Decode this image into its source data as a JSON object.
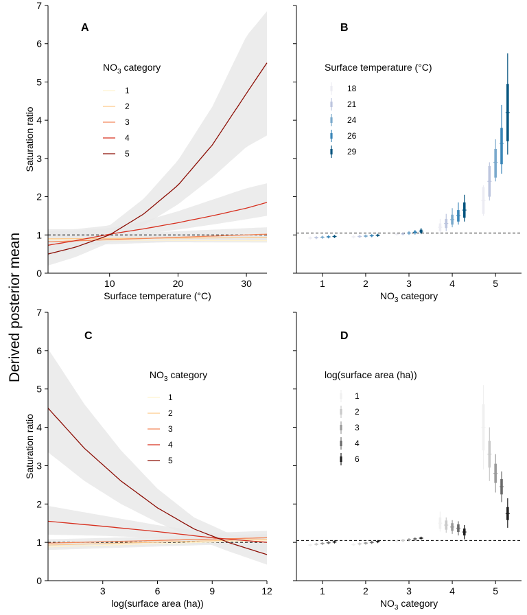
{
  "figure": {
    "shared_ylabel": "Derived posterior mean",
    "panel_ylabel": "Saturation ratio",
    "no3_xlabel_main": "NO",
    "no3_xlabel_sub": "3",
    "no3_xlabel_tail": " category"
  },
  "colors": {
    "no3": [
      "#fff3cf",
      "#fdc98b",
      "#f4885a",
      "#d7301f",
      "#8c0d04"
    ],
    "temp": [
      "#ececf3",
      "#bcc5de",
      "#7aa9cc",
      "#3a86b8",
      "#05547e"
    ],
    "area": [
      "#f0f0f0",
      "#c9c9c9",
      "#9a9a9a",
      "#6a6a6a",
      "#1e1e1e"
    ],
    "band": "#e9e9e9",
    "reference_line": "#000000"
  },
  "chart_data": [
    {
      "panel": "A",
      "type": "line",
      "xlabel": "Surface temperature (°C)",
      "ylabel": "Saturation ratio",
      "xlim": [
        1,
        33
      ],
      "ylim": [
        0,
        7
      ],
      "xticks": [
        10,
        20,
        30
      ],
      "yticks": [
        0,
        1,
        2,
        3,
        4,
        5,
        6,
        7
      ],
      "reference_y": 1,
      "legend": {
        "title_main": "NO",
        "title_sub": "3",
        "title_tail": " category",
        "placement": "upper-left",
        "labels": [
          "1",
          "2",
          "3",
          "4",
          "5"
        ]
      },
      "series": [
        {
          "name": "1",
          "x": [
            1,
            33
          ],
          "y": [
            0.87,
            0.85
          ],
          "lower": [
            0.82,
            0.8
          ],
          "upper": [
            0.92,
            0.9
          ]
        },
        {
          "name": "2",
          "x": [
            1,
            33
          ],
          "y": [
            0.9,
            0.93
          ],
          "lower": [
            0.84,
            0.86
          ],
          "upper": [
            0.96,
            1.0
          ]
        },
        {
          "name": "3",
          "x": [
            1,
            33
          ],
          "y": [
            0.82,
            1.02
          ],
          "lower": [
            0.7,
            0.9
          ],
          "upper": [
            0.95,
            1.2
          ]
        },
        {
          "name": "4",
          "x": [
            1,
            5,
            10,
            15,
            20,
            25,
            30,
            33
          ],
          "y": [
            0.73,
            0.85,
            1.02,
            1.16,
            1.32,
            1.5,
            1.7,
            1.85
          ],
          "lower": [
            0.45,
            0.62,
            0.88,
            1.02,
            1.14,
            1.27,
            1.41,
            1.5
          ],
          "upper": [
            1.1,
            1.12,
            1.18,
            1.36,
            1.62,
            1.92,
            2.22,
            2.35
          ]
        },
        {
          "name": "5",
          "x": [
            1,
            5,
            10,
            15,
            20,
            25,
            30,
            33
          ],
          "y": [
            0.5,
            0.68,
            1.0,
            1.55,
            2.3,
            3.35,
            4.7,
            5.5
          ],
          "lower": [
            0.2,
            0.42,
            0.8,
            1.25,
            1.8,
            2.5,
            3.3,
            3.6
          ],
          "upper": [
            1.15,
            1.15,
            1.25,
            1.95,
            2.95,
            4.35,
            6.2,
            6.85
          ]
        }
      ]
    },
    {
      "panel": "B",
      "type": "scatter",
      "xlabel": "NO3 category",
      "xlim": [
        0.4,
        5.6
      ],
      "ylim": [
        0,
        7
      ],
      "xticks": [
        1,
        2,
        3,
        4,
        5
      ],
      "reference_y": 1.05,
      "legend": {
        "title": "Surface temperature (°C)",
        "placement": "upper-left",
        "labels": [
          "18",
          "21",
          "24",
          "26",
          "29"
        ]
      },
      "categories": [
        1,
        2,
        3,
        4,
        5
      ],
      "series": [
        {
          "name": "18",
          "mean": [
            0.92,
            0.95,
            1.02,
            1.2,
            1.9
          ],
          "inner_low": [
            0.9,
            0.93,
            1.0,
            1.1,
            1.55
          ],
          "inner_high": [
            0.94,
            0.97,
            1.04,
            1.3,
            2.25
          ],
          "outer_low": [
            0.88,
            0.91,
            0.98,
            1.02,
            1.5
          ],
          "outer_high": [
            0.96,
            0.99,
            1.06,
            1.42,
            2.3
          ]
        },
        {
          "name": "21",
          "mean": [
            0.93,
            0.96,
            1.03,
            1.3,
            2.4
          ],
          "inner_low": [
            0.91,
            0.94,
            1.01,
            1.18,
            2.0
          ],
          "inner_high": [
            0.95,
            0.98,
            1.05,
            1.42,
            2.8
          ],
          "outer_low": [
            0.89,
            0.92,
            0.99,
            1.1,
            1.9
          ],
          "outer_high": [
            0.97,
            1.0,
            1.07,
            1.55,
            2.9
          ]
        },
        {
          "name": "24",
          "mean": [
            0.94,
            0.97,
            1.05,
            1.4,
            2.9
          ],
          "inner_low": [
            0.92,
            0.95,
            1.02,
            1.27,
            2.5
          ],
          "inner_high": [
            0.96,
            0.99,
            1.08,
            1.53,
            3.25
          ],
          "outer_low": [
            0.9,
            0.93,
            1.0,
            1.2,
            2.4
          ],
          "outer_high": [
            0.98,
            1.01,
            1.1,
            1.7,
            3.5
          ]
        },
        {
          "name": "26",
          "mean": [
            0.95,
            0.98,
            1.07,
            1.5,
            3.4
          ],
          "inner_low": [
            0.93,
            0.96,
            1.04,
            1.35,
            2.85
          ],
          "inner_high": [
            0.97,
            1.0,
            1.1,
            1.65,
            3.8
          ],
          "outer_low": [
            0.91,
            0.94,
            1.01,
            1.27,
            2.6
          ],
          "outer_high": [
            0.99,
            1.02,
            1.13,
            1.85,
            4.4
          ]
        },
        {
          "name": "29",
          "mean": [
            0.96,
            0.99,
            1.1,
            1.65,
            4.2
          ],
          "inner_low": [
            0.94,
            0.97,
            1.06,
            1.45,
            3.45
          ],
          "inner_high": [
            0.98,
            1.01,
            1.14,
            1.85,
            4.95
          ],
          "outer_low": [
            0.92,
            0.95,
            1.02,
            1.35,
            3.1
          ],
          "outer_high": [
            1.0,
            1.03,
            1.18,
            2.05,
            5.75
          ]
        }
      ]
    },
    {
      "panel": "C",
      "type": "line",
      "xlabel": "log(surface area (ha))",
      "ylabel": "Saturation ratio",
      "xlim": [
        0,
        12
      ],
      "ylim": [
        0,
        7
      ],
      "xticks": [
        3,
        6,
        9,
        12
      ],
      "yticks": [
        0,
        1,
        2,
        3,
        4,
        5,
        6,
        7
      ],
      "reference_y": 1,
      "legend": {
        "title_main": "NO",
        "title_sub": "3",
        "title_tail": " category",
        "placement": "upper-center",
        "labels": [
          "1",
          "2",
          "3",
          "4",
          "5"
        ]
      },
      "series": [
        {
          "name": "1",
          "x": [
            0,
            12
          ],
          "y": [
            0.88,
            1.05
          ],
          "lower": [
            0.8,
            0.98
          ],
          "upper": [
            0.96,
            1.12
          ]
        },
        {
          "name": "2",
          "x": [
            0,
            12
          ],
          "y": [
            0.93,
            1.08
          ],
          "lower": [
            0.85,
            1.0
          ],
          "upper": [
            1.01,
            1.16
          ]
        },
        {
          "name": "3",
          "x": [
            0,
            12
          ],
          "y": [
            0.98,
            1.12
          ],
          "lower": [
            0.88,
            1.02
          ],
          "upper": [
            1.08,
            1.22
          ]
        },
        {
          "name": "4",
          "x": [
            0,
            3,
            6,
            9,
            12
          ],
          "y": [
            1.55,
            1.42,
            1.28,
            1.12,
            1.0
          ],
          "lower": [
            1.2,
            1.17,
            1.12,
            1.0,
            0.75
          ],
          "upper": [
            1.95,
            1.7,
            1.45,
            1.25,
            1.3
          ]
        },
        {
          "name": "5",
          "x": [
            0,
            2,
            4,
            6,
            8,
            10,
            12
          ],
          "y": [
            4.5,
            3.45,
            2.6,
            1.9,
            1.35,
            0.98,
            0.68
          ],
          "lower": [
            3.35,
            2.6,
            2.0,
            1.52,
            1.1,
            0.75,
            0.42
          ],
          "upper": [
            6.05,
            4.6,
            3.4,
            2.4,
            1.65,
            1.22,
            1.05
          ]
        }
      ]
    },
    {
      "panel": "D",
      "type": "scatter",
      "xlabel": "NO3 category",
      "xlim": [
        0.4,
        5.6
      ],
      "ylim": [
        0,
        7
      ],
      "xticks": [
        1,
        2,
        3,
        4,
        5
      ],
      "reference_y": 1.05,
      "legend": {
        "title": "log(surface area (ha))",
        "placement": "upper-left",
        "labels": [
          "1",
          "2",
          "3",
          "4",
          "6"
        ]
      },
      "categories": [
        1,
        2,
        3,
        4,
        5
      ],
      "series": [
        {
          "name": "1",
          "mean": [
            0.93,
            0.94,
            1.03,
            1.5,
            4.0
          ],
          "inner_low": [
            0.91,
            0.92,
            1.01,
            1.35,
            3.4
          ],
          "inner_high": [
            0.95,
            0.96,
            1.05,
            1.65,
            4.6
          ],
          "outer_low": [
            0.89,
            0.9,
            0.99,
            1.28,
            2.9
          ],
          "outer_high": [
            0.97,
            0.98,
            1.07,
            1.8,
            5.1
          ]
        },
        {
          "name": "2",
          "mean": [
            0.95,
            0.96,
            1.05,
            1.45,
            3.3
          ],
          "inner_low": [
            0.93,
            0.94,
            1.03,
            1.33,
            2.95
          ],
          "inner_high": [
            0.97,
            0.98,
            1.07,
            1.57,
            3.65
          ],
          "outer_low": [
            0.91,
            0.92,
            1.01,
            1.25,
            2.6
          ],
          "outer_high": [
            0.99,
            1.0,
            1.09,
            1.65,
            4.0
          ]
        },
        {
          "name": "3",
          "mean": [
            0.97,
            0.98,
            1.07,
            1.4,
            2.8
          ],
          "inner_low": [
            0.95,
            0.96,
            1.05,
            1.3,
            2.55
          ],
          "inner_high": [
            0.99,
            1.0,
            1.09,
            1.5,
            3.05
          ],
          "outer_low": [
            0.93,
            0.94,
            1.03,
            1.22,
            2.3
          ],
          "outer_high": [
            1.01,
            1.02,
            1.11,
            1.58,
            3.3
          ]
        },
        {
          "name": "4",
          "mean": [
            0.99,
            1.0,
            1.09,
            1.37,
            2.45
          ],
          "inner_low": [
            0.97,
            0.98,
            1.07,
            1.27,
            2.25
          ],
          "inner_high": [
            1.01,
            1.02,
            1.11,
            1.47,
            2.65
          ],
          "outer_low": [
            0.95,
            0.96,
            1.05,
            1.18,
            2.05
          ],
          "outer_high": [
            1.03,
            1.04,
            1.13,
            1.55,
            2.85
          ]
        },
        {
          "name": "6",
          "mean": [
            1.01,
            1.02,
            1.11,
            1.27,
            1.75
          ],
          "inner_low": [
            0.99,
            1.0,
            1.09,
            1.18,
            1.58
          ],
          "inner_high": [
            1.03,
            1.04,
            1.13,
            1.36,
            1.92
          ],
          "outer_low": [
            0.97,
            0.98,
            1.07,
            1.08,
            1.38
          ],
          "outer_high": [
            1.05,
            1.06,
            1.15,
            1.45,
            2.15
          ]
        }
      ]
    }
  ]
}
